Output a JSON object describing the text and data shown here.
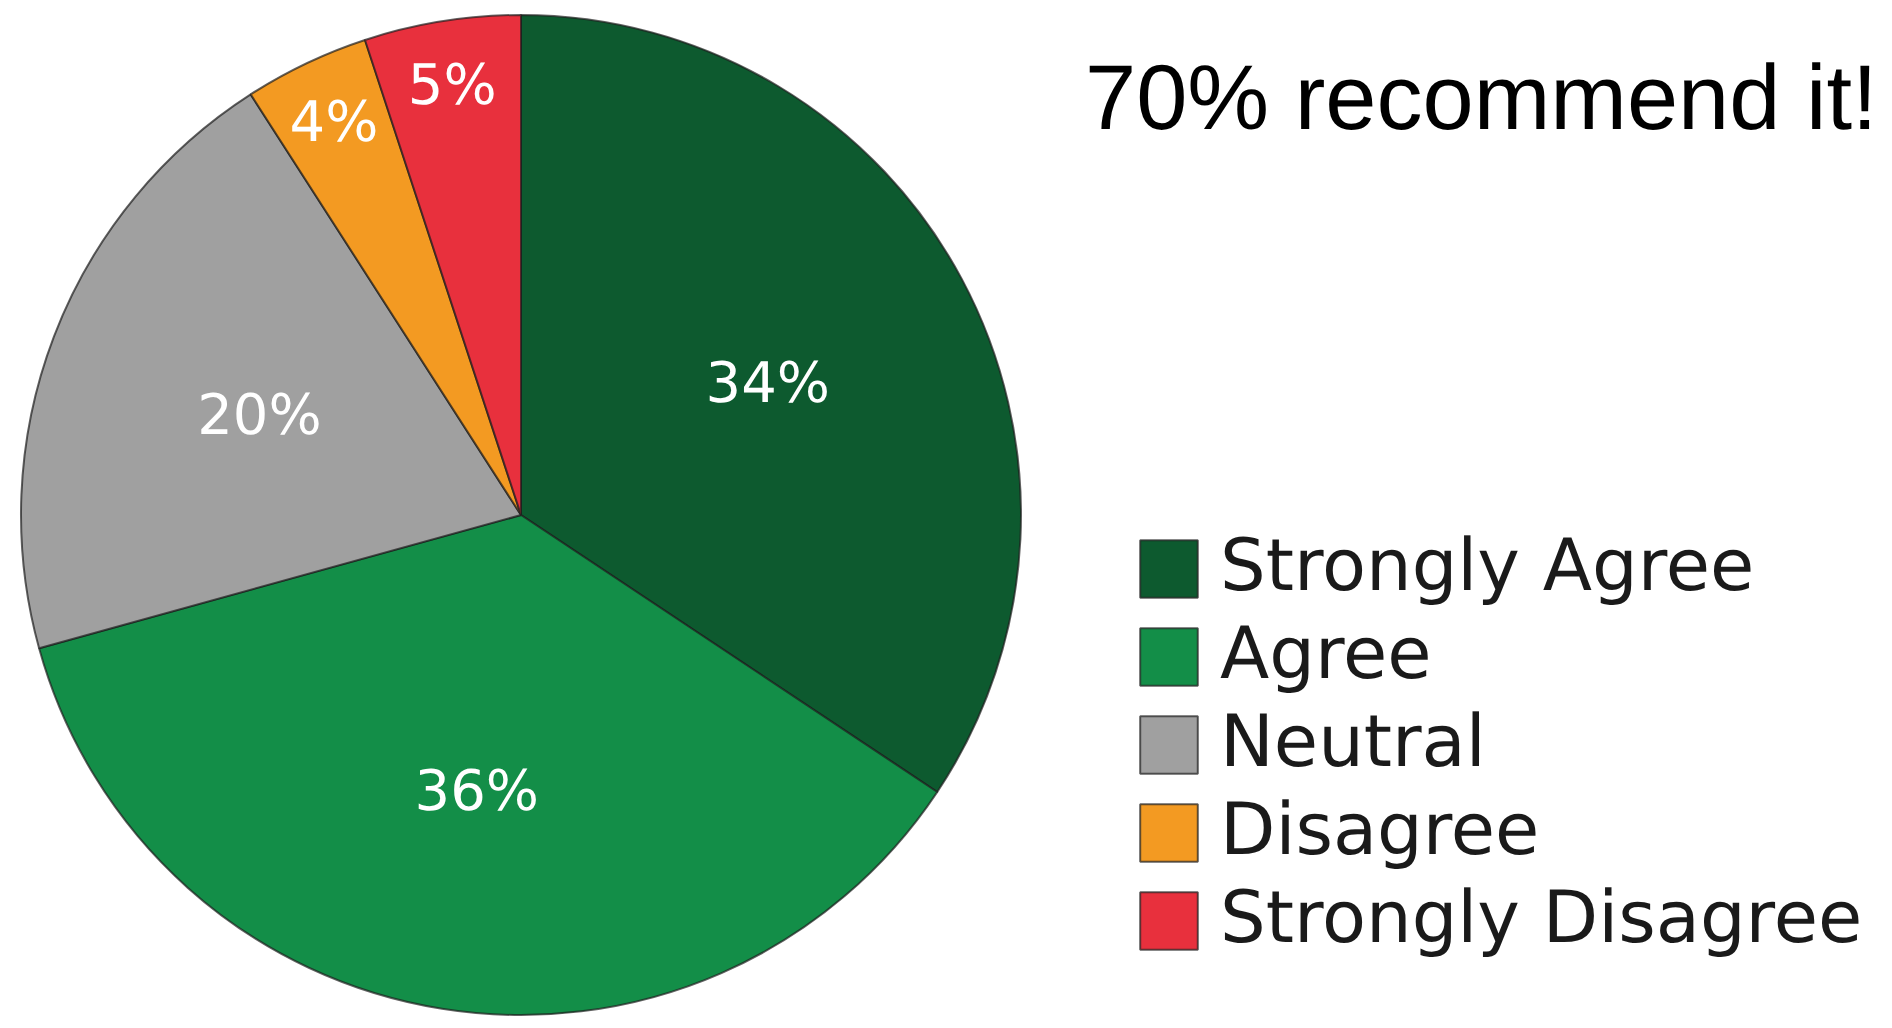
{
  "chart_data": {
    "type": "pie",
    "title": "70% recommend it!",
    "categories": [
      "Strongly Agree",
      "Agree",
      "Neutral",
      "Disagree",
      "Strongly Disagree"
    ],
    "values": [
      34,
      36,
      20,
      4,
      5
    ],
    "colors": [
      "#0d5a2f",
      "#138e48",
      "#a0a0a0",
      "#f39a22",
      "#e8303d"
    ],
    "value_labels": [
      "34%",
      "36%",
      "20%",
      "4%",
      "5%"
    ],
    "legend": "right"
  }
}
